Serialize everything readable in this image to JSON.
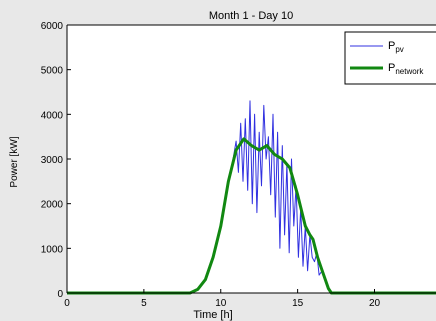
{
  "chart_data": {
    "type": "line",
    "title": "Month 1 - Day 10",
    "xlabel": "Time [h]",
    "ylabel": "Power [kW]",
    "xlim": [
      0,
      24
    ],
    "ylim": [
      0,
      6000
    ],
    "xticks": [
      0,
      5,
      10,
      15,
      20
    ],
    "yticks": [
      0,
      1000,
      2000,
      3000,
      4000,
      5000,
      6000
    ],
    "grid": false,
    "legend_position": "top-right",
    "series": [
      {
        "name": "P",
        "subscript": "pv",
        "color": "#3030e0",
        "x": [
          0,
          8.0,
          8.5,
          9.0,
          9.5,
          10.0,
          10.5,
          10.8,
          11.0,
          11.15,
          11.3,
          11.45,
          11.6,
          11.75,
          11.9,
          12.05,
          12.2,
          12.35,
          12.5,
          12.65,
          12.8,
          12.95,
          13.1,
          13.25,
          13.4,
          13.55,
          13.7,
          13.85,
          14.0,
          14.15,
          14.3,
          14.45,
          14.6,
          14.75,
          14.9,
          15.05,
          15.2,
          15.35,
          15.5,
          15.65,
          15.8,
          15.95,
          16.1,
          16.25,
          16.4,
          16.6,
          16.8,
          17.0,
          17.2,
          24
        ],
        "values": [
          0,
          0,
          80,
          300,
          800,
          1500,
          2500,
          3000,
          3400,
          2700,
          3800,
          2500,
          3900,
          2300,
          4300,
          2000,
          4000,
          1800,
          3600,
          2400,
          4200,
          3000,
          3500,
          2200,
          4000,
          1700,
          3600,
          1000,
          3300,
          1300,
          2900,
          900,
          3000,
          1500,
          2400,
          800,
          1900,
          600,
          1500,
          500,
          1300,
          800,
          700,
          900,
          400,
          500,
          300,
          100,
          0,
          0
        ]
      },
      {
        "name": "P",
        "subscript": "network",
        "color": "#118811",
        "x": [
          0,
          8.0,
          8.5,
          9.0,
          9.5,
          10.0,
          10.5,
          11.0,
          11.5,
          12.0,
          12.5,
          13.0,
          13.5,
          14.0,
          14.5,
          15.0,
          15.5,
          15.8,
          16.0,
          16.3,
          16.6,
          17.0,
          17.2,
          24
        ],
        "values": [
          0,
          0,
          80,
          300,
          800,
          1500,
          2500,
          3200,
          3450,
          3300,
          3200,
          3300,
          3100,
          3000,
          2800,
          2200,
          1500,
          1300,
          1200,
          800,
          500,
          100,
          0,
          0
        ]
      }
    ]
  }
}
